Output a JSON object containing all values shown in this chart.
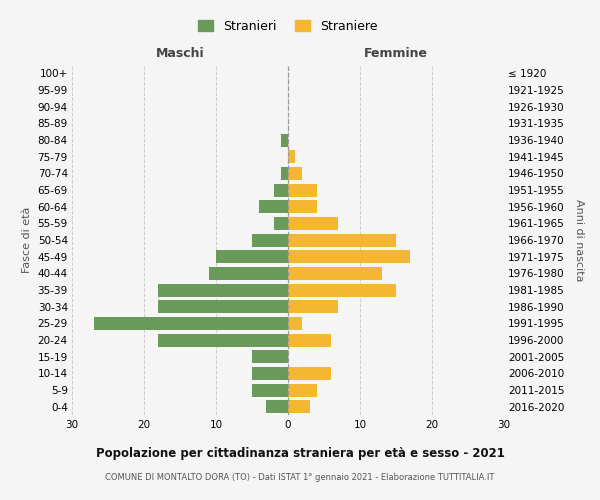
{
  "age_groups": [
    "0-4",
    "5-9",
    "10-14",
    "15-19",
    "20-24",
    "25-29",
    "30-34",
    "35-39",
    "40-44",
    "45-49",
    "50-54",
    "55-59",
    "60-64",
    "65-69",
    "70-74",
    "75-79",
    "80-84",
    "85-89",
    "90-94",
    "95-99",
    "100+"
  ],
  "birth_years": [
    "2016-2020",
    "2011-2015",
    "2006-2010",
    "2001-2005",
    "1996-2000",
    "1991-1995",
    "1986-1990",
    "1981-1985",
    "1976-1980",
    "1971-1975",
    "1966-1970",
    "1961-1965",
    "1956-1960",
    "1951-1955",
    "1946-1950",
    "1941-1945",
    "1936-1940",
    "1931-1935",
    "1926-1930",
    "1921-1925",
    "≤ 1920"
  ],
  "maschi": [
    3,
    5,
    5,
    5,
    18,
    27,
    18,
    18,
    11,
    10,
    5,
    2,
    4,
    2,
    1,
    0,
    1,
    0,
    0,
    0,
    0
  ],
  "femmine": [
    3,
    4,
    6,
    0,
    6,
    2,
    7,
    15,
    13,
    17,
    15,
    7,
    4,
    4,
    2,
    1,
    0,
    0,
    0,
    0,
    0
  ],
  "color_maschi": "#6a9a5a",
  "color_femmine": "#f5b731",
  "bg_color": "#f5f5f5",
  "grid_color": "#cccccc",
  "title": "Popolazione per cittadinanza straniera per età e sesso - 2021",
  "subtitle": "COMUNE DI MONTALTO DORA (TO) - Dati ISTAT 1° gennaio 2021 - Elaborazione TUTTITALIA.IT",
  "xlabel_left": "Maschi",
  "xlabel_right": "Femmine",
  "ylabel_left": "Fasce di età",
  "ylabel_right": "Anni di nascita",
  "legend_maschi": "Stranieri",
  "legend_femmine": "Straniere",
  "xlim": 30
}
